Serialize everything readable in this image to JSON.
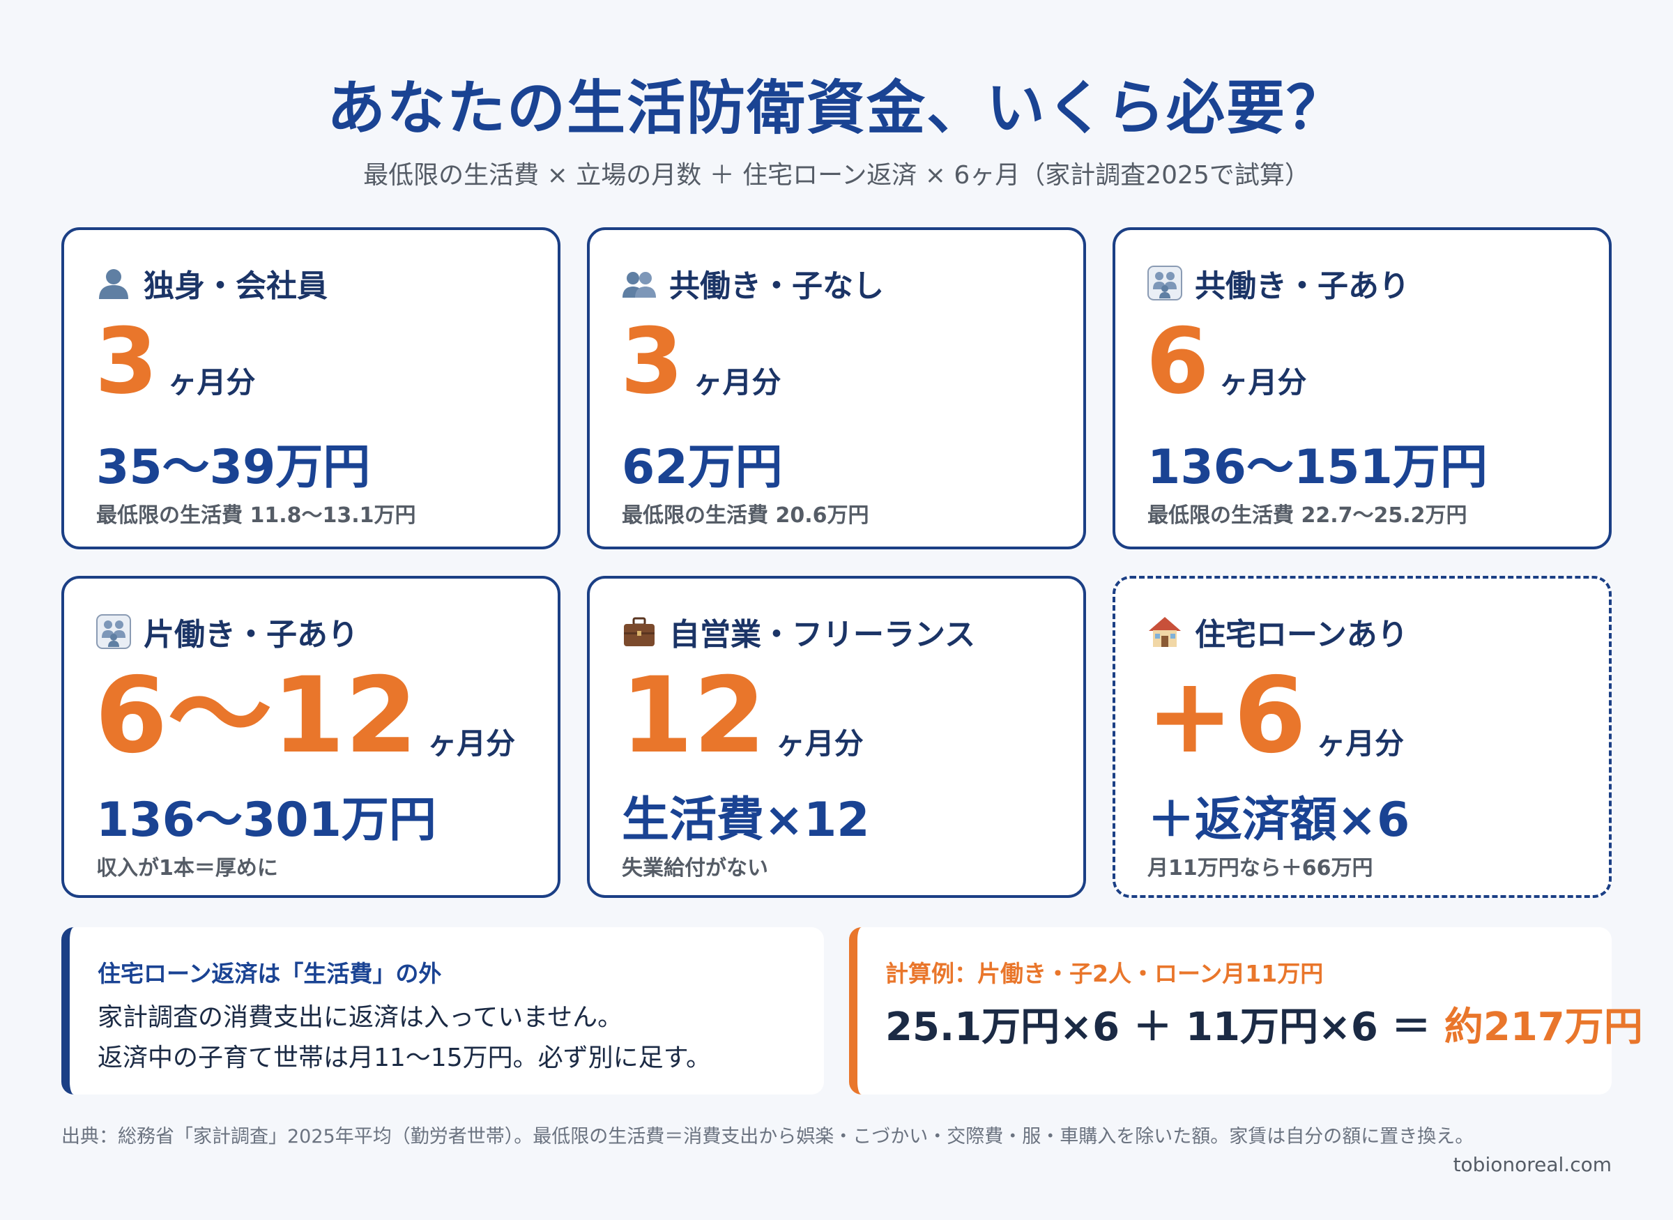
{
  "title": "あなたの生活防衛資金、いくら必要？",
  "subtitle": "最低限の生活費 × 立場の月数 ＋ 住宅ローン返済 × 6ヶ月（家計調査2025で試算）",
  "cards": [
    {
      "icon": "person-icon",
      "label": "独身・会社員",
      "months": "3",
      "unit": "ヶ月分",
      "amount": "35〜39万円",
      "note": "最低限の生活費 11.8〜13.1万円"
    },
    {
      "icon": "two-people-icon",
      "label": "共働き・子なし",
      "months": "3",
      "unit": "ヶ月分",
      "amount": "62万円",
      "note": "最低限の生活費 20.6万円"
    },
    {
      "icon": "family-icon",
      "label": "共働き・子あり",
      "months": "6",
      "unit": "ヶ月分",
      "amount": "136〜151万円",
      "note": "最低限の生活費 22.7〜25.2万円"
    },
    {
      "icon": "family-icon",
      "label": "片働き・子あり",
      "months": "6〜12",
      "unit": "ヶ月分",
      "amount": "136〜301万円",
      "note": "収入が1本＝厚めに"
    },
    {
      "icon": "briefcase-icon",
      "label": "自営業・フリーランス",
      "months": "12",
      "unit": "ヶ月分",
      "amount": "生活費×12",
      "note": "失業給付がない"
    },
    {
      "icon": "house-icon",
      "label": "住宅ローンあり",
      "months": "+6",
      "unit": "ヶ月分",
      "amount": "＋返済額×6",
      "note": "月11万円なら＋66万円"
    }
  ],
  "mortgage_box": {
    "title": "住宅ローン返済は「生活費」の外",
    "line1": "家計調査の消費支出に返済は入っていません。",
    "line2": "返済中の子育て世帯は月11〜15万円。必ず別に足す。"
  },
  "example_box": {
    "title": "計算例：片働き・子2人・ローン月11万円",
    "formula": "25.1万円×6 ＋ 11万円×6 ＝ ",
    "result": "約217万円"
  },
  "source": "出典：総務省「家計調査」2025年平均（勤労者世帯）。最低限の生活費＝消費支出から娯楽・こづかい・交際費・服・車購入を除いた額。家賃は自分の額に置き換え。",
  "site": "tobionoreal.com",
  "colors": {
    "navy": "#1b3f85",
    "orange": "#e9762b",
    "background": "#f5f7fb"
  }
}
